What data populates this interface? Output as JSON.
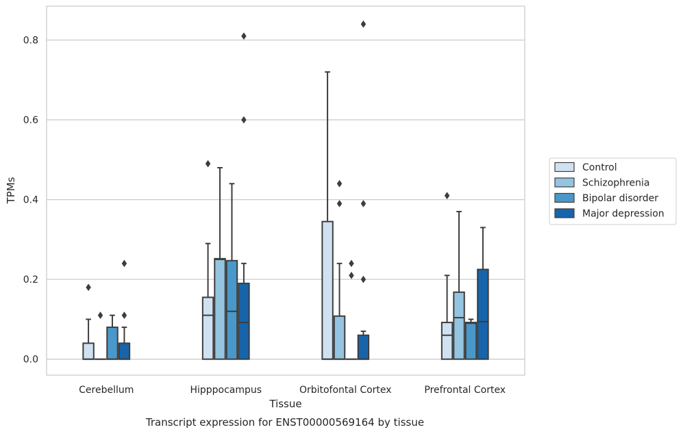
{
  "caption": "Transcript expression for ENST00000569164 by tissue",
  "chart_data": {
    "type": "box",
    "title": "",
    "xlabel": "Tissue",
    "ylabel": "TPMs",
    "ylim": [
      -0.04,
      0.885
    ],
    "yticks": [
      0.0,
      0.2,
      0.4,
      0.6,
      0.8
    ],
    "ytick_labels": [
      "0.0",
      "0.2",
      "0.4",
      "0.6",
      "0.8"
    ],
    "grid": "horizontal",
    "legend_position": "right",
    "categories": [
      "Cerebellum",
      "Hipppocampus",
      "Orbitofontal Cortex",
      "Prefrontal Cortex"
    ],
    "series": [
      {
        "name": "Control",
        "color": "#d0e1f2",
        "boxes": [
          {
            "q1": 0.0,
            "median": 0.0,
            "q3": 0.04,
            "whisker_low": 0.0,
            "whisker_high": 0.1,
            "outliers": [
              0.18
            ]
          },
          {
            "q1": 0.0,
            "median": 0.11,
            "q3": 0.155,
            "whisker_low": 0.0,
            "whisker_high": 0.29,
            "outliers": [
              0.49
            ]
          },
          {
            "q1": 0.0,
            "median": 0.0,
            "q3": 0.345,
            "whisker_low": 0.0,
            "whisker_high": 0.72,
            "outliers": []
          },
          {
            "q1": 0.0,
            "median": 0.06,
            "q3": 0.092,
            "whisker_low": 0.0,
            "whisker_high": 0.21,
            "outliers": [
              0.41
            ]
          }
        ]
      },
      {
        "name": "Schizophrenia",
        "color": "#94c4df",
        "boxes": [
          {
            "q1": 0.0,
            "median": 0.0,
            "q3": 0.0,
            "whisker_low": 0.0,
            "whisker_high": 0.0,
            "outliers": [
              0.11
            ]
          },
          {
            "q1": 0.0,
            "median": 0.25,
            "q3": 0.252,
            "whisker_low": 0.0,
            "whisker_high": 0.48,
            "outliers": []
          },
          {
            "q1": 0.0,
            "median": 0.0,
            "q3": 0.108,
            "whisker_low": 0.0,
            "whisker_high": 0.24,
            "outliers": [
              0.39,
              0.44
            ]
          },
          {
            "q1": 0.0,
            "median": 0.104,
            "q3": 0.168,
            "whisker_low": 0.0,
            "whisker_high": 0.37,
            "outliers": []
          }
        ]
      },
      {
        "name": "Bipolar disorder",
        "color": "#4a98c9",
        "boxes": [
          {
            "q1": 0.0,
            "median": 0.0,
            "q3": 0.08,
            "whisker_low": 0.0,
            "whisker_high": 0.11,
            "outliers": []
          },
          {
            "q1": 0.0,
            "median": 0.12,
            "q3": 0.247,
            "whisker_low": 0.0,
            "whisker_high": 0.44,
            "outliers": []
          },
          {
            "q1": 0.0,
            "median": 0.0,
            "q3": 0.0,
            "whisker_low": 0.0,
            "whisker_high": 0.0,
            "outliers": [
              0.21,
              0.24
            ]
          },
          {
            "q1": 0.0,
            "median": 0.09,
            "q3": 0.092,
            "whisker_low": 0.0,
            "whisker_high": 0.1,
            "outliers": []
          }
        ]
      },
      {
        "name": "Major depression",
        "color": "#1764ab",
        "boxes": [
          {
            "q1": 0.0,
            "median": 0.0,
            "q3": 0.04,
            "whisker_low": 0.0,
            "whisker_high": 0.08,
            "outliers": [
              0.11,
              0.24
            ]
          },
          {
            "q1": 0.0,
            "median": 0.092,
            "q3": 0.19,
            "whisker_low": 0.0,
            "whisker_high": 0.24,
            "outliers": [
              0.6,
              0.81
            ]
          },
          {
            "q1": 0.0,
            "median": 0.0,
            "q3": 0.06,
            "whisker_low": 0.0,
            "whisker_high": 0.07,
            "outliers": [
              0.2,
              0.39,
              0.84
            ]
          },
          {
            "q1": 0.0,
            "median": 0.094,
            "q3": 0.225,
            "whisker_low": 0.0,
            "whisker_high": 0.33,
            "outliers": []
          }
        ]
      }
    ]
  }
}
